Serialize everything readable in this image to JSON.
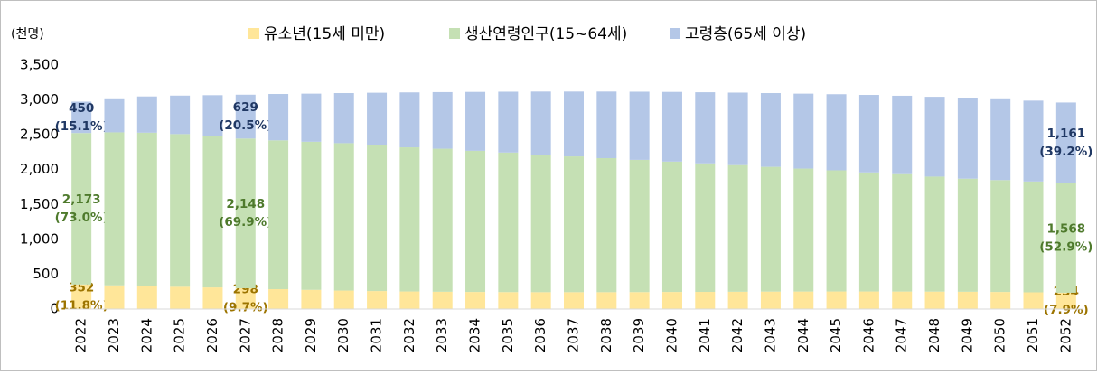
{
  "chart_data": {
    "type": "stacked_bar",
    "y_axis_label": "(천명)",
    "categories": [
      "2022",
      "2023",
      "2024",
      "2025",
      "2026",
      "2027",
      "2028",
      "2029",
      "2030",
      "2031",
      "2032",
      "2033",
      "2034",
      "2035",
      "2036",
      "2037",
      "2038",
      "2039",
      "2040",
      "2041",
      "2042",
      "2043",
      "2044",
      "2045",
      "2046",
      "2047",
      "2048",
      "2049",
      "2050",
      "2051",
      "2052"
    ],
    "series": [
      {
        "name": "유소년(15세 미만)",
        "color": "#ffe699",
        "label_color": "#9c7400",
        "values": [
          352,
          340,
          330,
          320,
          310,
          298,
          285,
          275,
          265,
          258,
          252,
          248,
          245,
          243,
          242,
          242,
          242,
          243,
          245,
          246,
          248,
          250,
          251,
          252,
          252,
          251,
          250,
          248,
          245,
          240,
          234
        ],
        "value_labels": [
          "352\n(11.8%)",
          null,
          null,
          null,
          null,
          "298\n(9.7%)",
          null,
          null,
          null,
          null,
          null,
          null,
          null,
          null,
          null,
          null,
          null,
          null,
          null,
          null,
          null,
          null,
          null,
          null,
          null,
          null,
          null,
          null,
          null,
          null,
          "234\n(7.9%)"
        ]
      },
      {
        "name": "생산연령인구(15~64세)",
        "color": "#c5e0b4",
        "label_color": "#4e7a2c",
        "values": [
          2173,
          2195,
          2200,
          2190,
          2170,
          2148,
          2135,
          2125,
          2115,
          2092,
          2068,
          2052,
          2025,
          2002,
          1973,
          1948,
          1923,
          1897,
          1870,
          1844,
          1817,
          1790,
          1764,
          1738,
          1708,
          1684,
          1650,
          1622,
          1605,
          1590,
          1568
        ],
        "value_labels": [
          "2,173\n(73.0%)",
          null,
          null,
          null,
          null,
          "2,148\n(69.9%)",
          null,
          null,
          null,
          null,
          null,
          null,
          null,
          null,
          null,
          null,
          null,
          null,
          null,
          null,
          null,
          null,
          null,
          null,
          null,
          null,
          null,
          null,
          null,
          null,
          "1,568\n(52.9%)"
        ]
      },
      {
        "name": "고령층(65세 이상)",
        "color": "#b4c7e7",
        "label_color": "#203864",
        "values": [
          450,
          475,
          520,
          552,
          588,
          629,
          665,
          690,
          718,
          753,
          788,
          812,
          845,
          873,
          905,
          930,
          955,
          978,
          1000,
          1020,
          1040,
          1058,
          1075,
          1092,
          1112,
          1125,
          1145,
          1158,
          1160,
          1160,
          1161
        ],
        "value_labels": [
          "450\n(15.1%)",
          null,
          null,
          null,
          null,
          "629\n(20.5%)",
          null,
          null,
          null,
          null,
          null,
          null,
          null,
          null,
          null,
          null,
          null,
          null,
          null,
          null,
          null,
          null,
          null,
          null,
          null,
          null,
          null,
          null,
          null,
          null,
          "1,161\n(39.2%)"
        ]
      }
    ],
    "ylim": [
      0,
      3500
    ],
    "yticks": [
      0,
      500,
      {
        "value": 1000,
        "label": "1,000"
      },
      {
        "value": 1500,
        "label": "1,500"
      },
      {
        "value": 2000,
        "label": "2,000"
      },
      {
        "value": 2500,
        "label": "2,500"
      },
      {
        "value": 3000,
        "label": "3,000"
      },
      {
        "value": 3500,
        "label": "3,500"
      }
    ],
    "grid": false,
    "legend": "top"
  }
}
